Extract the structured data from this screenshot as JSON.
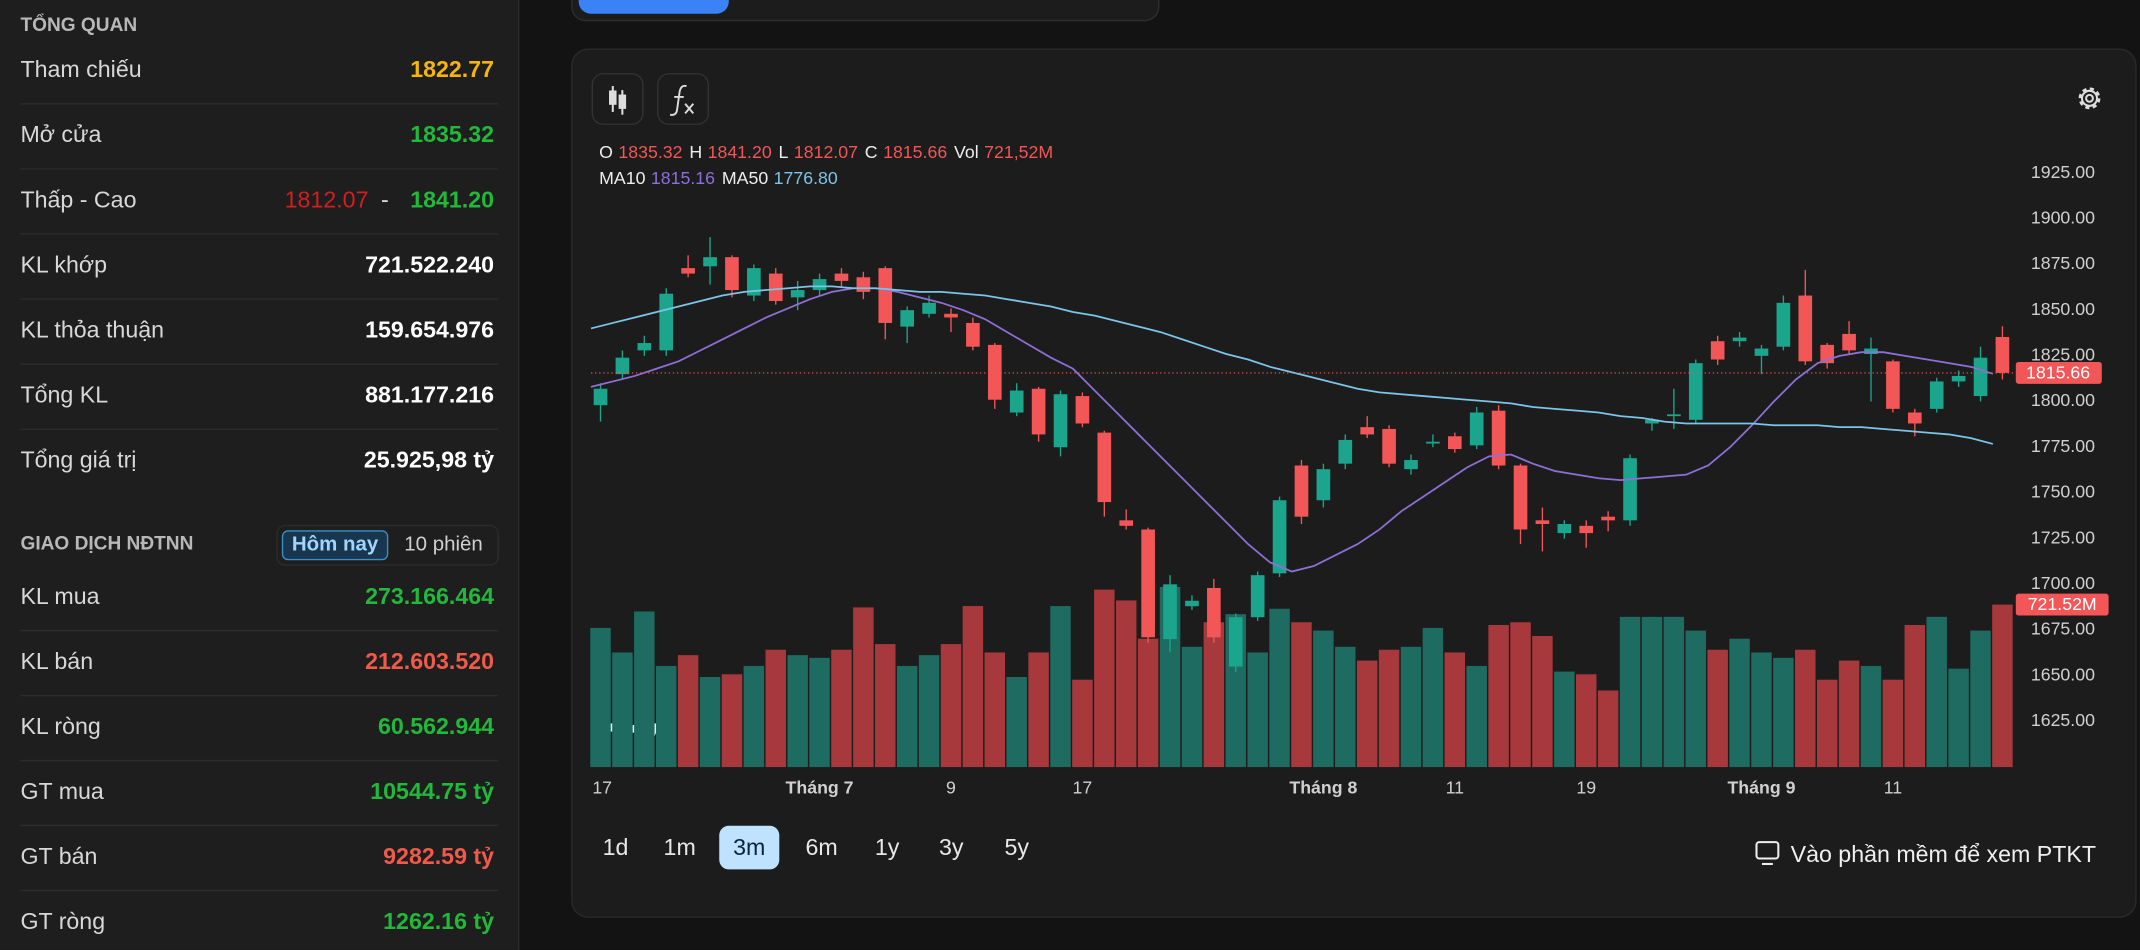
{
  "overview": {
    "title": "TỔNG QUAN",
    "rows": [
      {
        "label": "Tham chiếu",
        "value": "1822.77",
        "color": "#f5b50a"
      },
      {
        "label": "Mở cửa",
        "value": "1835.32",
        "color": "#22b83a"
      },
      {
        "label": "Thấp - Cao",
        "low": "1812.07",
        "separator": "-",
        "high": "1841.20",
        "low_color": "#d41e1e",
        "high_color": "#22b83a"
      },
      {
        "label": "KL khớp",
        "value": "721.522.240",
        "color": "#ffffff"
      },
      {
        "label": "KL thỏa thuận",
        "value": "159.654.976",
        "color": "#ffffff"
      },
      {
        "label": "Tổng KL",
        "value": "881.177.216",
        "color": "#ffffff"
      },
      {
        "label": "Tổng giá trị",
        "value": "25.925,98 tỷ",
        "color": "#ffffff"
      }
    ]
  },
  "foreign": {
    "title": "GIAO DỊCH NĐTNN",
    "tabs": [
      "Hôm nay",
      "10 phiên"
    ],
    "active_tab": 0,
    "rows": [
      {
        "label": "KL mua",
        "value": "273.166.464",
        "color": "#22b83a"
      },
      {
        "label": "KL bán",
        "value": "212.603.520",
        "color": "#f05a4a"
      },
      {
        "label": "KL ròng",
        "value": "60.562.944",
        "color": "#22b83a"
      },
      {
        "label": "GT mua",
        "value": "10544.75 tỷ",
        "color": "#22b83a"
      },
      {
        "label": "GT bán",
        "value": "9282.59 tỷ",
        "color": "#f05a4a"
      },
      {
        "label": "GT ròng",
        "value": "1262.16 tỷ",
        "color": "#22b83a"
      }
    ]
  },
  "chart_data": {
    "type": "candlestick",
    "categories": [
      "17",
      null,
      null,
      null,
      null,
      null,
      null,
      null,
      null,
      null,
      "Tháng 7",
      null,
      null,
      null,
      null,
      null,
      "9",
      null,
      null,
      null,
      null,
      null,
      "17",
      null,
      null,
      null,
      null,
      null,
      null,
      null,
      null,
      null,
      null,
      "Tháng 8",
      null,
      null,
      null,
      null,
      null,
      "11",
      null,
      null,
      null,
      null,
      null,
      "19",
      null,
      null,
      null,
      null,
      null,
      null,
      null,
      "Tháng 9",
      null,
      null,
      null,
      null,
      null,
      "11",
      null,
      null,
      null,
      null,
      null
    ],
    "open": [
      1798,
      1815,
      1828,
      1828,
      1873,
      1874,
      1879,
      1858,
      1870,
      1857,
      1861,
      1870,
      1868,
      1873,
      1841,
      1848,
      1848,
      1843,
      1831,
      1794,
      1807,
      1775,
      1803,
      1783,
      1735,
      1730,
      1670,
      1688,
      1698,
      1655,
      1682,
      1706,
      1765,
      1746,
      1766,
      1786,
      1785,
      1763,
      1777,
      1781,
      1776,
      1795,
      1765,
      1735,
      1728,
      1732,
      1737,
      1735,
      1788,
      1792,
      1790,
      1833,
      1833,
      1825,
      1830,
      1858,
      1831,
      1837,
      1826,
      1822,
      1794,
      1796,
      1811,
      1803,
      1835.32
    ],
    "high": [
      1810,
      1828,
      1836,
      1862,
      1880,
      1890,
      1880,
      1875,
      1873,
      1866,
      1870,
      1873,
      1871,
      1874,
      1852,
      1858,
      1851,
      1846,
      1832,
      1810,
      1808,
      1806,
      1805,
      1784,
      1741,
      1731,
      1705,
      1694,
      1703,
      1684,
      1707,
      1748,
      1768,
      1766,
      1782,
      1792,
      1787,
      1771,
      1782,
      1783,
      1797,
      1798,
      1766,
      1742,
      1735,
      1735,
      1740,
      1771,
      1791,
      1807,
      1823,
      1836,
      1838,
      1831,
      1858,
      1872,
      1832,
      1844,
      1835,
      1823,
      1796,
      1813,
      1817,
      1830,
      1841.2
    ],
    "low": [
      1789,
      1812,
      1825,
      1825,
      1868,
      1864,
      1857,
      1855,
      1853,
      1850,
      1858,
      1863,
      1856,
      1834,
      1832,
      1846,
      1838,
      1828,
      1796,
      1792,
      1778,
      1770,
      1786,
      1737,
      1730,
      1668,
      1663,
      1686,
      1668,
      1652,
      1680,
      1704,
      1733,
      1742,
      1763,
      1780,
      1764,
      1760,
      1775,
      1772,
      1774,
      1763,
      1722,
      1718,
      1725,
      1720,
      1729,
      1732,
      1784,
      1785,
      1788,
      1820,
      1830,
      1815,
      1828,
      1820,
      1818,
      1826,
      1800,
      1794,
      1781,
      1794,
      1808,
      1800,
      1812.07
    ],
    "close": [
      1807,
      1824,
      1832,
      1859,
      1870,
      1879,
      1861,
      1873,
      1855,
      1861,
      1867,
      1866,
      1860,
      1843,
      1850,
      1854,
      1846,
      1830,
      1801,
      1806,
      1782,
      1804,
      1788,
      1745,
      1732,
      1671,
      1700,
      1691,
      1671,
      1682,
      1705,
      1746,
      1737,
      1763,
      1779,
      1782,
      1766,
      1768,
      1778,
      1774,
      1794,
      1765,
      1730,
      1733,
      1733,
      1728,
      1735,
      1769,
      1790,
      1793,
      1821,
      1823,
      1835,
      1829,
      1854,
      1822,
      1821,
      1828,
      1829,
      1796,
      1788,
      1811,
      1814,
      1824,
      1815.66
    ],
    "volume": {
      "axis": "y2",
      "values": [
        618,
        509,
        691,
        449,
        497,
        400,
        412,
        449,
        521,
        497,
        485,
        521,
        709,
        546,
        449,
        497,
        546,
        715,
        509,
        400,
        509,
        715,
        388,
        788,
        740,
        570,
        800,
        534,
        643,
        679,
        509,
        703,
        643,
        606,
        534,
        473,
        521,
        534,
        618,
        509,
        449,
        631,
        643,
        582,
        424,
        412,
        340,
        667,
        667,
        667,
        606,
        521,
        570,
        509,
        485,
        521,
        388,
        473,
        449,
        388,
        631,
        667,
        437,
        606,
        721.52
      ]
    },
    "ma": [
      {
        "name": "MA10",
        "color": "#8e6fd8",
        "value_label": "1815.16",
        "values": [
          1808,
          1811,
          1814,
          1818,
          1822,
          1828,
          1834,
          1840,
          1846,
          1851,
          1856,
          1860,
          1862,
          1862,
          1860,
          1857,
          1854,
          1850,
          1845,
          1838,
          1831,
          1824,
          1818,
          1806,
          1794,
          1782,
          1770,
          1758,
          1746,
          1734,
          1722,
          1712,
          1707,
          1710,
          1716,
          1722,
          1730,
          1740,
          1748,
          1756,
          1764,
          1770,
          1771,
          1766,
          1762,
          1760,
          1758,
          1757,
          1758,
          1759,
          1760,
          1765,
          1775,
          1787,
          1800,
          1812,
          1821,
          1825,
          1827,
          1827,
          1825,
          1823,
          1821,
          1819,
          1815.16
        ]
      },
      {
        "name": "MA50",
        "color": "#7cc4e8",
        "value_label": "1776.80",
        "values": [
          1840,
          1843,
          1846,
          1849,
          1852,
          1855,
          1858,
          1860,
          1861,
          1862,
          1863,
          1863,
          1862,
          1862,
          1861,
          1860,
          1860,
          1859,
          1858,
          1856,
          1854,
          1852,
          1849,
          1847,
          1844,
          1841,
          1838,
          1834,
          1830,
          1826,
          1823,
          1819,
          1816,
          1813,
          1810,
          1807,
          1805,
          1804,
          1803,
          1802,
          1801,
          1800,
          1799,
          1797,
          1796,
          1795,
          1794,
          1792,
          1791,
          1789,
          1788,
          1788,
          1788,
          1788,
          1787,
          1787,
          1787,
          1786,
          1786,
          1785,
          1784,
          1783,
          1782,
          1780,
          1776.8
        ]
      }
    ],
    "legend": {
      "labels": [
        "O",
        "H",
        "L",
        "C",
        "Vol"
      ],
      "values": [
        "1835.32",
        "1841.20",
        "1812.07",
        "1815.66",
        "721,52M"
      ]
    },
    "last_volume_label": "721.52M",
    "up_color": "#1ba58d",
    "down_color": "#f25656",
    "volume_up_color": "#1d6b61",
    "volume_down_color": "#a7393d",
    "ylim": [
      1600,
      1945
    ],
    "y2lim": [
      0,
      2800
    ],
    "yticks": [
      {
        "value": 1925,
        "label": "1925.00"
      },
      {
        "value": 1900,
        "label": "1900.00"
      },
      {
        "value": 1875,
        "label": "1875.00"
      },
      {
        "value": 1850,
        "label": "1850.00"
      },
      {
        "value": 1825,
        "label": "1825.00"
      },
      {
        "value": 1800,
        "label": "1800.00"
      },
      {
        "value": 1775,
        "label": "1775.00"
      },
      {
        "value": 1750,
        "label": "1750.00"
      },
      {
        "value": 1725,
        "label": "1725.00"
      },
      {
        "value": 1700,
        "label": "1700.00"
      },
      {
        "value": 1675,
        "label": "1675.00"
      },
      {
        "value": 1650,
        "label": "1650.00"
      },
      {
        "value": 1625,
        "label": "1625.00"
      }
    ],
    "grid": false
  },
  "controls": {
    "ranges": [
      "1d",
      "1m",
      "3m",
      "6m",
      "1y",
      "3y",
      "5y"
    ],
    "active_range": 2,
    "software_link": "Vào phần mềm để xem PTKT"
  }
}
